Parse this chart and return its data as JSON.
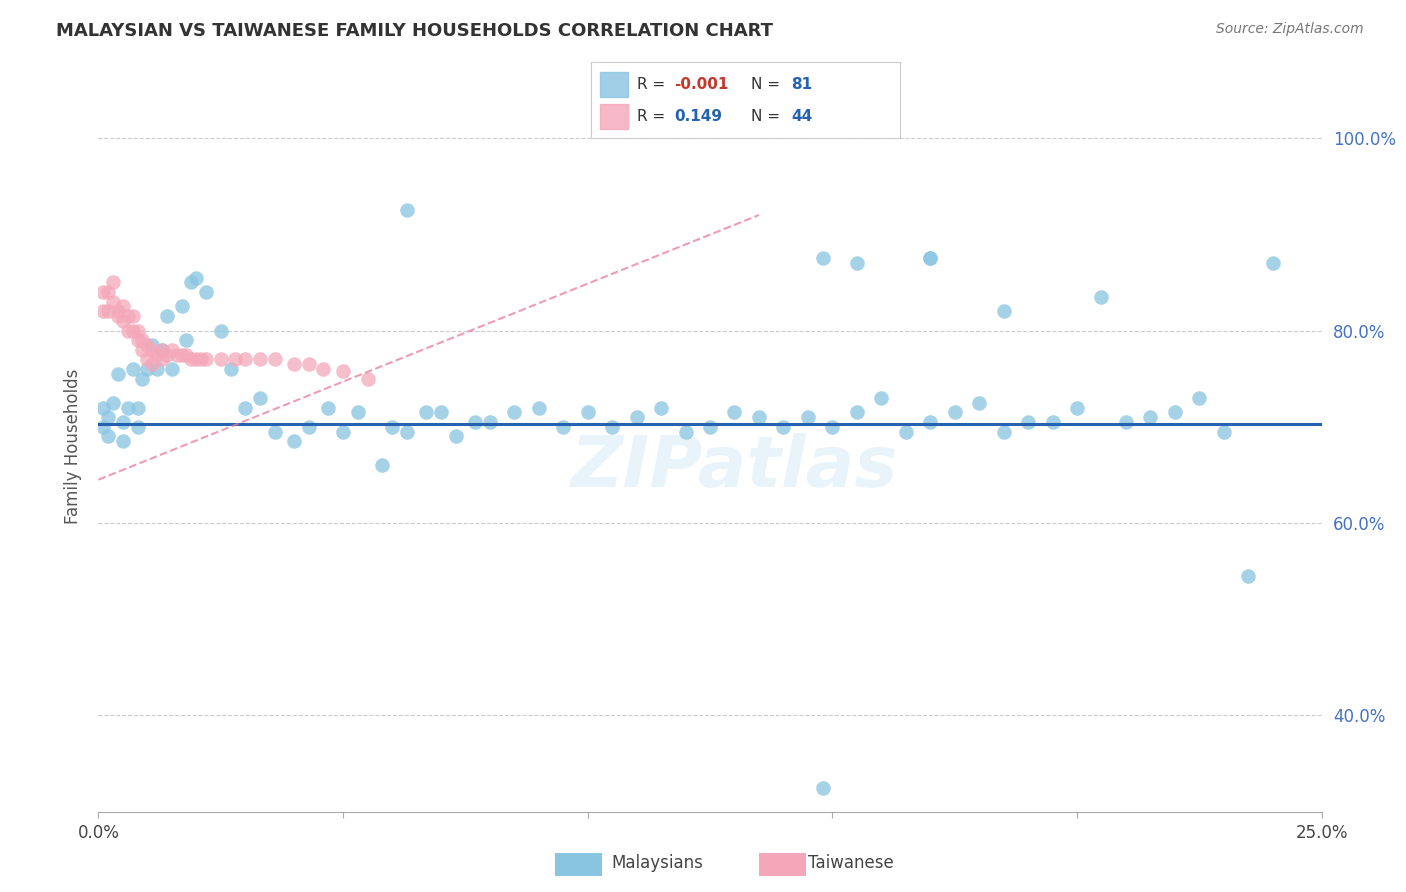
{
  "title": "MALAYSIAN VS TAIWANESE FAMILY HOUSEHOLDS CORRELATION CHART",
  "source": "Source: ZipAtlas.com",
  "ylabel": "Family Households",
  "blue_R": "-0.001",
  "blue_N": "81",
  "pink_R": "0.149",
  "pink_N": "44",
  "blue_color": "#89c4e1",
  "pink_color": "#f4a7b9",
  "blue_line_color": "#2563b0",
  "pink_line_color": "#e87d9a",
  "xlim": [
    0.0,
    0.25
  ],
  "ylim": [
    0.3,
    1.06
  ],
  "blue_trend_y": 0.703,
  "pink_trend_x0": 0.0,
  "pink_trend_y0": 0.645,
  "pink_trend_x1": 0.135,
  "pink_trend_y1": 0.92,
  "watermark": "ZIPatlas",
  "blue_x": [
    0.001,
    0.001,
    0.002,
    0.002,
    0.003,
    0.004,
    0.005,
    0.005,
    0.006,
    0.007,
    0.008,
    0.008,
    0.009,
    0.01,
    0.011,
    0.012,
    0.013,
    0.014,
    0.015,
    0.017,
    0.018,
    0.019,
    0.02,
    0.022,
    0.025,
    0.027,
    0.03,
    0.033,
    0.036,
    0.04,
    0.043,
    0.047,
    0.05,
    0.053,
    0.058,
    0.06,
    0.063,
    0.067,
    0.07,
    0.073,
    0.077,
    0.08,
    0.085,
    0.09,
    0.095,
    0.1,
    0.105,
    0.11,
    0.115,
    0.12,
    0.125,
    0.13,
    0.135,
    0.14,
    0.145,
    0.15,
    0.155,
    0.16,
    0.165,
    0.17,
    0.175,
    0.18,
    0.185,
    0.19,
    0.195,
    0.2,
    0.205,
    0.21,
    0.215,
    0.22,
    0.225,
    0.23,
    0.235,
    0.24,
    0.148,
    0.063,
    0.17,
    0.185,
    0.155,
    0.148,
    0.17
  ],
  "blue_y": [
    0.7,
    0.72,
    0.71,
    0.69,
    0.725,
    0.755,
    0.705,
    0.685,
    0.72,
    0.76,
    0.72,
    0.7,
    0.75,
    0.76,
    0.785,
    0.76,
    0.78,
    0.815,
    0.76,
    0.825,
    0.79,
    0.85,
    0.855,
    0.84,
    0.8,
    0.76,
    0.72,
    0.73,
    0.695,
    0.685,
    0.7,
    0.72,
    0.695,
    0.715,
    0.66,
    0.7,
    0.695,
    0.715,
    0.715,
    0.69,
    0.705,
    0.705,
    0.715,
    0.72,
    0.7,
    0.715,
    0.7,
    0.71,
    0.72,
    0.695,
    0.7,
    0.715,
    0.71,
    0.7,
    0.71,
    0.7,
    0.715,
    0.73,
    0.695,
    0.705,
    0.715,
    0.725,
    0.695,
    0.705,
    0.705,
    0.72,
    0.835,
    0.705,
    0.71,
    0.715,
    0.73,
    0.695,
    0.545,
    0.87,
    0.875,
    0.925,
    0.875,
    0.82,
    0.87,
    0.325,
    0.875
  ],
  "pink_x": [
    0.001,
    0.001,
    0.002,
    0.002,
    0.003,
    0.003,
    0.004,
    0.004,
    0.005,
    0.005,
    0.006,
    0.006,
    0.007,
    0.007,
    0.008,
    0.008,
    0.009,
    0.009,
    0.01,
    0.01,
    0.011,
    0.011,
    0.012,
    0.013,
    0.013,
    0.014,
    0.015,
    0.016,
    0.017,
    0.018,
    0.019,
    0.02,
    0.021,
    0.022,
    0.025,
    0.028,
    0.03,
    0.033,
    0.036,
    0.04,
    0.043,
    0.046,
    0.05,
    0.055
  ],
  "pink_y": [
    0.84,
    0.82,
    0.84,
    0.82,
    0.85,
    0.83,
    0.82,
    0.815,
    0.81,
    0.825,
    0.815,
    0.8,
    0.815,
    0.8,
    0.8,
    0.79,
    0.79,
    0.78,
    0.785,
    0.77,
    0.78,
    0.765,
    0.775,
    0.78,
    0.77,
    0.775,
    0.78,
    0.775,
    0.775,
    0.775,
    0.77,
    0.77,
    0.77,
    0.77,
    0.77,
    0.77,
    0.77,
    0.77,
    0.77,
    0.765,
    0.765,
    0.76,
    0.758,
    0.75
  ]
}
